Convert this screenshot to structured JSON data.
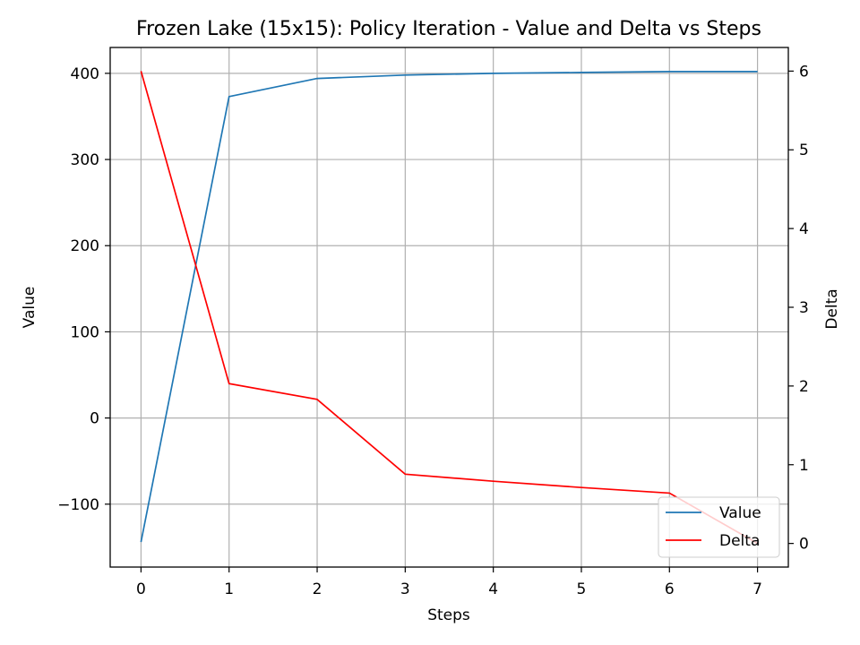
{
  "chart_data": {
    "type": "line",
    "title": "Frozen Lake (15x15): Policy Iteration - Value and Delta vs Steps",
    "xlabel": "Steps",
    "ylabel": "Value",
    "y2label": "Delta",
    "x": [
      0,
      1,
      2,
      3,
      4,
      5,
      6,
      7
    ],
    "xlim": [
      -0.35,
      7.35
    ],
    "ylim": [
      -173,
      430
    ],
    "y2lim": [
      -0.3,
      6.3
    ],
    "xticks": [
      0,
      1,
      2,
      3,
      4,
      5,
      6,
      7
    ],
    "xtick_labels": [
      "0",
      "1",
      "2",
      "3",
      "4",
      "5",
      "6",
      "7"
    ],
    "yticks": [
      -100,
      0,
      100,
      200,
      300,
      400
    ],
    "ytick_labels": [
      "−100",
      "0",
      "100",
      "200",
      "300",
      "400"
    ],
    "y2ticks": [
      0,
      1,
      2,
      3,
      4,
      5,
      6
    ],
    "y2tick_labels": [
      "0",
      "1",
      "2",
      "3",
      "4",
      "5",
      "6"
    ],
    "grid": true,
    "legend_position": "bottom-right",
    "series": [
      {
        "name": "Value",
        "axis": "left",
        "color": "#1f77b4",
        "values": [
          -144,
          373,
          394,
          398,
          400,
          401,
          402,
          402
        ]
      },
      {
        "name": "Delta",
        "axis": "right",
        "color": "#ff0000",
        "values": [
          6.0,
          2.03,
          1.83,
          0.88,
          0.79,
          0.71,
          0.64,
          0.0
        ]
      }
    ]
  }
}
